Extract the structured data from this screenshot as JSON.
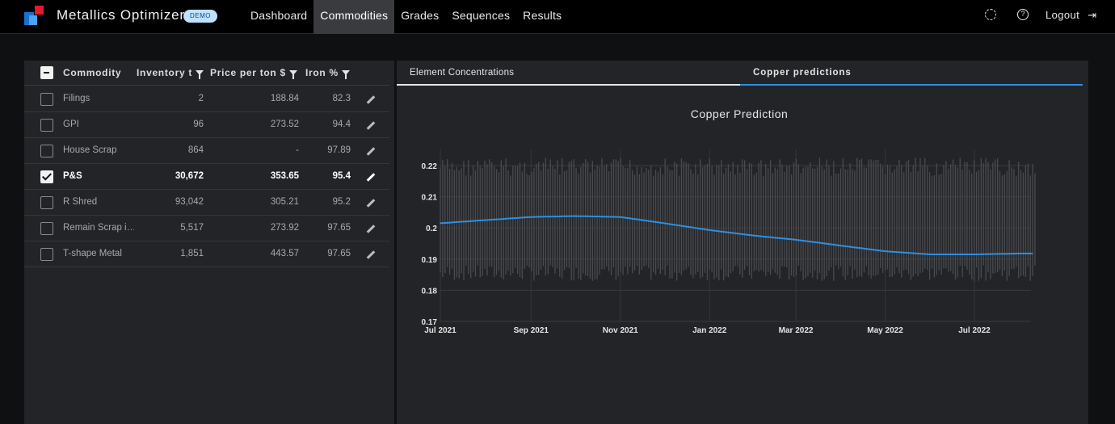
{
  "header": {
    "app_title": "Metallics Optimizer",
    "badge": "DEMO",
    "nav": [
      {
        "label": "Dashboard",
        "active": false
      },
      {
        "label": "Commodities",
        "active": true
      },
      {
        "label": "Grades",
        "active": false
      },
      {
        "label": "Sequences",
        "active": false
      },
      {
        "label": "Results",
        "active": false
      }
    ],
    "settings_icon": "gear-icon",
    "help_icon": "help-circle-icon",
    "help_glyph": "?",
    "logout_label": "Logout",
    "logout_glyph": "⇥",
    "brand_colors": [
      "#e01b2f",
      "#1b6fd1",
      "#4aa3ff"
    ]
  },
  "table": {
    "columns": {
      "commodity": "Commodity",
      "inventory": "Inventory t",
      "price": "Price per ton $",
      "iron": "Iron %"
    },
    "rows": [
      {
        "name": "Filings",
        "inventory": "2",
        "price": "188.84",
        "iron": "82.3",
        "checked": false
      },
      {
        "name": "GPI",
        "inventory": "96",
        "price": "273.52",
        "iron": "94.4",
        "checked": false
      },
      {
        "name": "House Scrap",
        "inventory": "864",
        "price": "-",
        "iron": "97.89",
        "checked": false
      },
      {
        "name": "P&S",
        "inventory": "30,672",
        "price": "353.65",
        "iron": "95.4",
        "checked": true
      },
      {
        "name": "R Shred",
        "inventory": "93,042",
        "price": "305.21",
        "iron": "95.2",
        "checked": false
      },
      {
        "name": "Remain Scrap i…",
        "inventory": "5,517",
        "price": "273.92",
        "iron": "97.65",
        "checked": false
      },
      {
        "name": "T-shape Metal",
        "inventory": "1,851",
        "price": "443.57",
        "iron": "97.65",
        "checked": false
      }
    ]
  },
  "tabs": {
    "element": "Element Concentrations",
    "copper": "Copper predictions",
    "active": "copper"
  },
  "chart_data": {
    "type": "line",
    "title": "Copper Prediction",
    "xlabel": "",
    "ylabel": "",
    "ylim": [
      0.17,
      0.225
    ],
    "yticks": [
      "0.22",
      "0.21",
      "0.2",
      "0.19",
      "0.18",
      "0.17"
    ],
    "xticks": [
      "Jul 2021",
      "Sep 2021",
      "Nov 2021",
      "Jan 2022",
      "Mar 2022",
      "May 2022",
      "Jul 2022"
    ],
    "x_range": [
      "2021-07-01",
      "2022-08-20"
    ],
    "grid": true,
    "line_color": "#2f8fe0",
    "error_bar_color": "#4a4b4f",
    "series": [
      {
        "x": [
          "2021-07-01",
          "2021-08-01",
          "2021-09-01",
          "2021-10-01",
          "2021-11-01",
          "2021-12-01",
          "2022-01-01",
          "2022-02-01",
          "2022-03-01",
          "2022-04-01",
          "2022-05-01",
          "2022-06-01",
          "2022-07-01",
          "2022-08-01"
        ],
        "y": [
          0.2015,
          0.2025,
          0.2035,
          0.2038,
          0.2035,
          0.2015,
          0.1993,
          0.1975,
          0.1962,
          0.1943,
          0.1925,
          0.1915,
          0.1915,
          0.1918
        ],
        "lower_band": 0.183,
        "upper_band": 0.2225
      }
    ]
  }
}
